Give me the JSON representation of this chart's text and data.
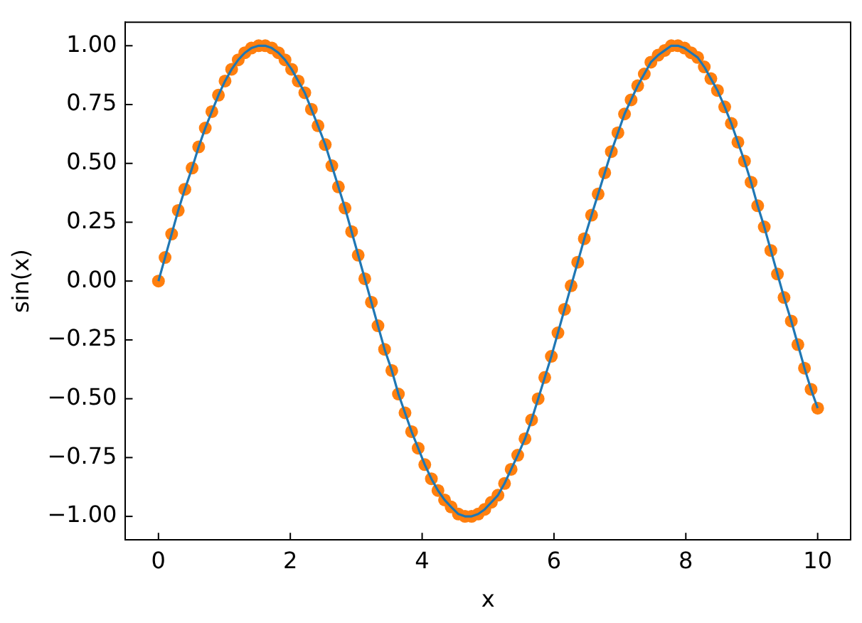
{
  "chart_data": {
    "type": "line",
    "xlabel": "x",
    "ylabel": "sin(x)",
    "grid": false,
    "legend": false,
    "x": [
      0,
      0.1,
      0.2,
      0.3,
      0.4,
      0.51,
      0.61,
      0.71,
      0.81,
      0.91,
      1.01,
      1.11,
      1.21,
      1.31,
      1.41,
      1.52,
      1.62,
      1.72,
      1.82,
      1.92,
      2.02,
      2.12,
      2.22,
      2.32,
      2.42,
      2.53,
      2.63,
      2.73,
      2.83,
      2.93,
      3.03,
      3.13,
      3.23,
      3.33,
      3.43,
      3.54,
      3.64,
      3.74,
      3.84,
      3.94,
      4.04,
      4.14,
      4.24,
      4.34,
      4.44,
      4.55,
      4.65,
      4.75,
      4.85,
      4.95,
      5.05,
      5.15,
      5.25,
      5.35,
      5.45,
      5.56,
      5.66,
      5.76,
      5.86,
      5.96,
      6.06,
      6.16,
      6.26,
      6.36,
      6.46,
      6.57,
      6.67,
      6.77,
      6.87,
      6.97,
      7.07,
      7.17,
      7.27,
      7.37,
      7.47,
      7.58,
      7.68,
      7.78,
      7.88,
      7.98,
      8.08,
      8.18,
      8.28,
      8.38,
      8.48,
      8.59,
      8.69,
      8.79,
      8.89,
      8.99,
      9.09,
      9.19,
      9.29,
      9.39,
      9.49,
      9.6,
      9.7,
      9.8,
      9.9,
      10
    ],
    "series": [
      {
        "color": "#1f77b4",
        "marker": "none",
        "values": [
          0,
          0.1,
          0.2,
          0.3,
          0.39,
          0.48,
          0.57,
          0.65,
          0.72,
          0.79,
          0.85,
          0.9,
          0.94,
          0.97,
          0.99,
          1.0,
          1.0,
          0.99,
          0.97,
          0.94,
          0.9,
          0.85,
          0.8,
          0.73,
          0.66,
          0.58,
          0.49,
          0.4,
          0.31,
          0.21,
          0.11,
          0.01,
          -0.09,
          -0.19,
          -0.29,
          -0.38,
          -0.48,
          -0.56,
          -0.64,
          -0.71,
          -0.78,
          -0.84,
          -0.89,
          -0.93,
          -0.96,
          -0.99,
          -1.0,
          -1.0,
          -0.99,
          -0.97,
          -0.94,
          -0.91,
          -0.86,
          -0.8,
          -0.74,
          -0.67,
          -0.59,
          -0.5,
          -0.41,
          -0.32,
          -0.22,
          -0.12,
          -0.02,
          0.08,
          0.18,
          0.28,
          0.37,
          0.46,
          0.55,
          0.63,
          0.71,
          0.77,
          0.83,
          0.88,
          0.93,
          0.96,
          0.98,
          1.0,
          1.0,
          0.99,
          0.97,
          0.95,
          0.91,
          0.86,
          0.81,
          0.74,
          0.67,
          0.59,
          0.51,
          0.42,
          0.32,
          0.23,
          0.13,
          0.03,
          -0.07,
          -0.17,
          -0.27,
          -0.37,
          -0.46,
          -0.54
        ]
      },
      {
        "type": "scatter",
        "color": "#ff7f0e",
        "marker": "circle",
        "values": [
          0,
          0.1,
          0.2,
          0.3,
          0.39,
          0.48,
          0.57,
          0.65,
          0.72,
          0.79,
          0.85,
          0.9,
          0.94,
          0.97,
          0.99,
          1.0,
          1.0,
          0.99,
          0.97,
          0.94,
          0.9,
          0.85,
          0.8,
          0.73,
          0.66,
          0.58,
          0.49,
          0.4,
          0.31,
          0.21,
          0.11,
          0.01,
          -0.09,
          -0.19,
          -0.29,
          -0.38,
          -0.48,
          -0.56,
          -0.64,
          -0.71,
          -0.78,
          -0.84,
          -0.89,
          -0.93,
          -0.96,
          -0.99,
          -1.0,
          -1.0,
          -0.99,
          -0.97,
          -0.94,
          -0.91,
          -0.86,
          -0.8,
          -0.74,
          -0.67,
          -0.59,
          -0.5,
          -0.41,
          -0.32,
          -0.22,
          -0.12,
          -0.02,
          0.08,
          0.18,
          0.28,
          0.37,
          0.46,
          0.55,
          0.63,
          0.71,
          0.77,
          0.83,
          0.88,
          0.93,
          0.96,
          0.98,
          1.0,
          1.0,
          0.99,
          0.97,
          0.95,
          0.91,
          0.86,
          0.81,
          0.74,
          0.67,
          0.59,
          0.51,
          0.42,
          0.32,
          0.23,
          0.13,
          0.03,
          -0.07,
          -0.17,
          -0.27,
          -0.37,
          -0.46,
          -0.54
        ]
      }
    ],
    "xlim": [
      -0.5,
      10.5
    ],
    "xticks": [
      0,
      2,
      4,
      6,
      8,
      10
    ],
    "ylim": [
      -1.1,
      1.1
    ],
    "yticks": [
      {
        "value": -1,
        "label": "−1.00"
      },
      {
        "value": -0.75,
        "label": "−0.75"
      },
      {
        "value": -0.5,
        "label": "−0.50"
      },
      {
        "value": -0.25,
        "label": "−0.25"
      },
      {
        "value": 0,
        "label": "0.00"
      },
      {
        "value": 0.25,
        "label": "0.25"
      },
      {
        "value": 0.5,
        "label": "0.50"
      },
      {
        "value": 0.75,
        "label": "0.75"
      },
      {
        "value": 1,
        "label": "1.00"
      }
    ]
  }
}
